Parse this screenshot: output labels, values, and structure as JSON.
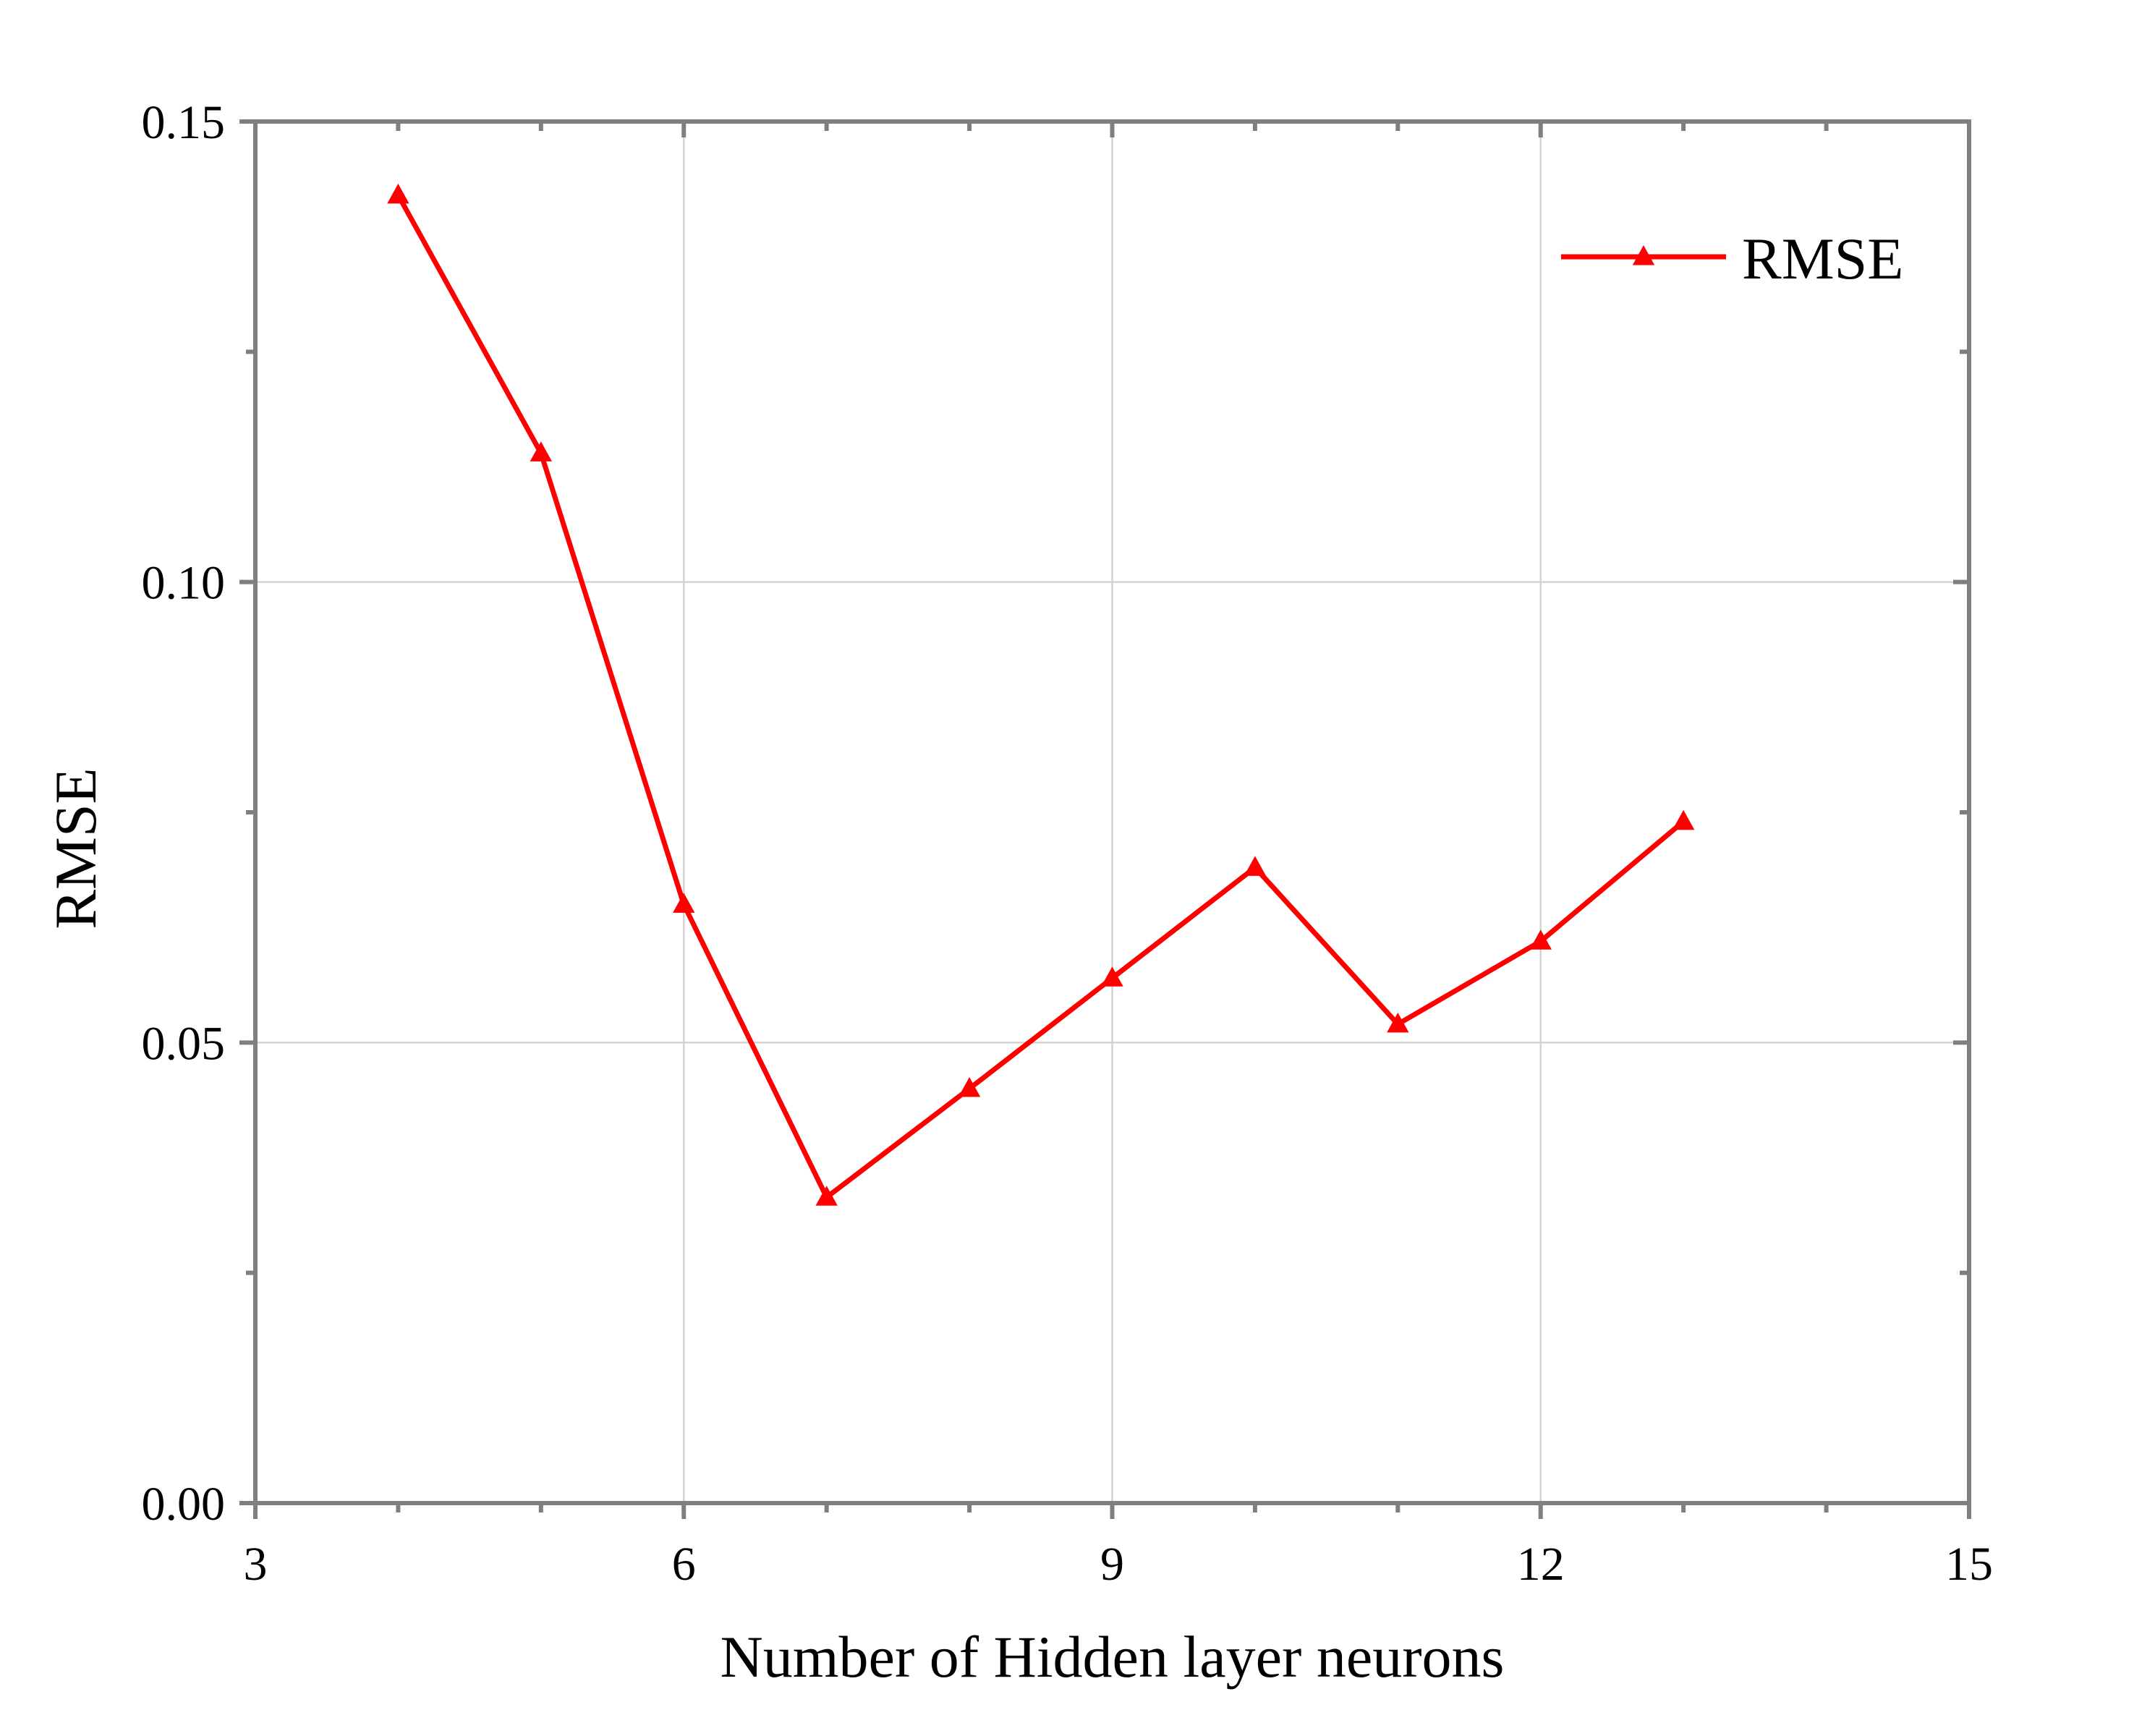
{
  "chart_data": {
    "type": "line",
    "title": "",
    "xlabel": "Number of Hidden layer neurons",
    "ylabel": "RMSE",
    "xlim": [
      3,
      15
    ],
    "ylim": [
      0,
      0.15
    ],
    "x_major_ticks": [
      3,
      6,
      9,
      12,
      15
    ],
    "x_major_tick_labels": [
      "3",
      "6",
      "9",
      "12",
      "15"
    ],
    "x_minor_ticks": [
      4,
      5,
      7,
      8,
      10,
      11,
      13,
      14
    ],
    "y_major_ticks": [
      0,
      0.05,
      0.1,
      0.15
    ],
    "y_major_tick_labels": [
      "0.00",
      "0.05",
      "0.10",
      "0.15"
    ],
    "y_minor_ticks": [
      0.025,
      0.075,
      0.125
    ],
    "grid": true,
    "legend": {
      "position": "top-right"
    },
    "series": [
      {
        "name": "RMSE",
        "color": "#ff0000",
        "marker": "triangle",
        "x": [
          4,
          5,
          6,
          7,
          8,
          9,
          10,
          11,
          12,
          13
        ],
        "values": [
          0.142,
          0.114,
          0.065,
          0.0332,
          0.045,
          0.057,
          0.069,
          0.052,
          0.061,
          0.074
        ]
      }
    ]
  }
}
